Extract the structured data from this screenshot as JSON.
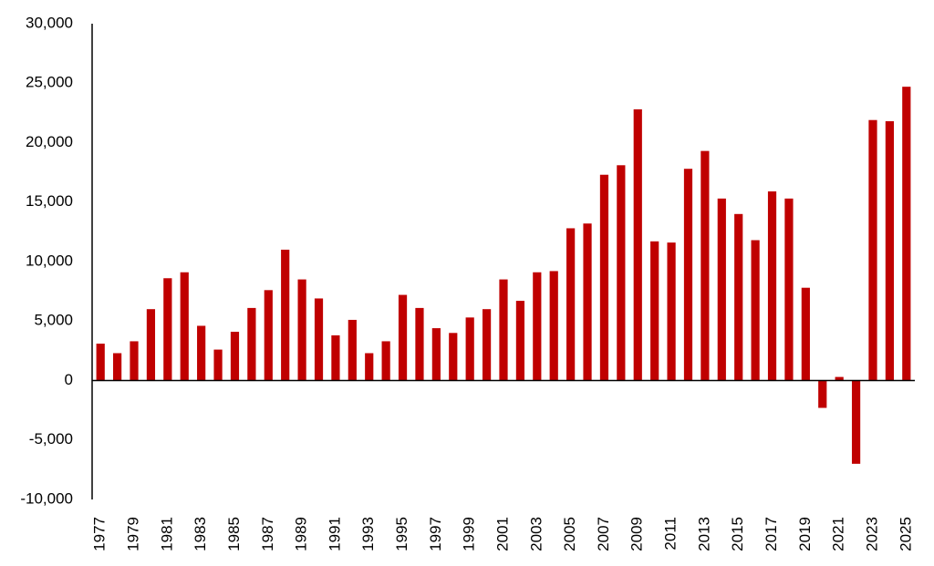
{
  "chart_data": {
    "type": "bar",
    "title": "",
    "xlabel": "",
    "ylabel": "",
    "ylim": [
      -10000,
      30000
    ],
    "yticks": [
      {
        "value": 30000,
        "label": "30,000"
      },
      {
        "value": 25000,
        "label": "25,000"
      },
      {
        "value": 20000,
        "label": "20,000"
      },
      {
        "value": 15000,
        "label": "15,000"
      },
      {
        "value": 10000,
        "label": "10,000"
      },
      {
        "value": 5000,
        "label": "5,000"
      },
      {
        "value": 0,
        "label": "0"
      },
      {
        "value": -5000,
        "label": "-5,000"
      },
      {
        "value": -10000,
        "label": "-10,000"
      }
    ],
    "grid": false,
    "legend": "none",
    "bar_color": "#C00000",
    "categories": [
      "1977",
      "1978",
      "1979",
      "1980",
      "1981",
      "1982",
      "1983",
      "1984",
      "1985",
      "1986",
      "1987",
      "1988",
      "1989",
      "1990",
      "1991",
      "1992",
      "1993",
      "1994",
      "1995",
      "1996",
      "1997",
      "1998",
      "1999",
      "2000",
      "2001",
      "2002",
      "2003",
      "2004",
      "2005",
      "2006",
      "2007",
      "2008",
      "2009",
      "2010",
      "2011",
      "2012",
      "2013",
      "2014",
      "2015",
      "2016",
      "2017",
      "2018",
      "2019",
      "2020",
      "2021",
      "2022",
      "2023",
      "2024",
      "2025"
    ],
    "visible_category_labels": [
      "1977",
      "1979",
      "1981",
      "1983",
      "1985",
      "1987",
      "1989",
      "1991",
      "1993",
      "1995",
      "1997",
      "1999",
      "2001",
      "2003",
      "2005",
      "2007",
      "2009",
      "2011",
      "2013",
      "2015",
      "2017",
      "2019",
      "2021",
      "2023",
      "2025"
    ],
    "values": [
      3100,
      2300,
      3300,
      6000,
      8600,
      9100,
      4600,
      2600,
      4100,
      6100,
      7600,
      11000,
      8500,
      6900,
      3800,
      5100,
      2300,
      3300,
      7200,
      6100,
      4400,
      4000,
      5300,
      6000,
      8500,
      6700,
      9100,
      9200,
      12800,
      13200,
      17300,
      18100,
      22800,
      11700,
      11600,
      17800,
      19300,
      15300,
      14000,
      11800,
      15900,
      15300,
      7800,
      -2300,
      300,
      -7000,
      21900,
      21800,
      24700
    ]
  }
}
